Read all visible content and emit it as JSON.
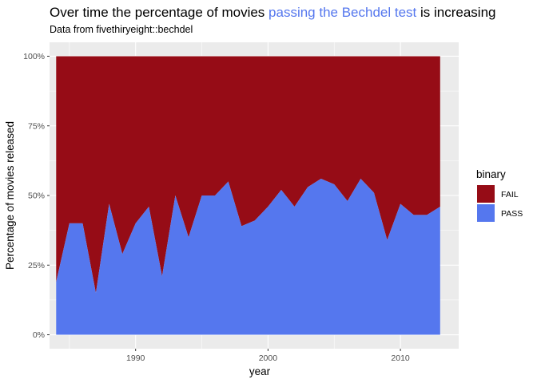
{
  "chart_data": {
    "type": "area",
    "stacked": "fill",
    "title_parts": {
      "before": "Over time the percentage of movies ",
      "highlight": "passing the Bechdel test",
      "after": " is increasing"
    },
    "subtitle": "Data from fivethiryeight::bechdel",
    "xlabel": "year",
    "ylabel": "Percentage of movies released",
    "xlim": [
      1983.5,
      2014.4
    ],
    "ylim": [
      -0.05,
      1.05
    ],
    "x_ticks": [
      1990,
      2000,
      2010
    ],
    "x_tick_labels": [
      "1990",
      "2000",
      "2010"
    ],
    "y_ticks": [
      0,
      0.25,
      0.5,
      0.75,
      1.0
    ],
    "y_tick_labels": [
      "0%",
      "25%",
      "50%",
      "75%",
      "100%"
    ],
    "grid": true,
    "legend_title": "binary",
    "legend_position": "right",
    "series": [
      {
        "name": "FAIL",
        "color": "#960c16"
      },
      {
        "name": "PASS",
        "color": "#5577ee"
      }
    ],
    "x": [
      1984,
      1985,
      1986,
      1987,
      1988,
      1989,
      1990,
      1991,
      1992,
      1993,
      1994,
      1995,
      1996,
      1997,
      1998,
      1999,
      2000,
      2001,
      2002,
      2003,
      2004,
      2005,
      2006,
      2007,
      2008,
      2009,
      2010,
      2011,
      2012,
      2013
    ],
    "pass_share": [
      0.19,
      0.4,
      0.4,
      0.15,
      0.47,
      0.29,
      0.4,
      0.46,
      0.21,
      0.5,
      0.35,
      0.5,
      0.5,
      0.55,
      0.39,
      0.41,
      0.46,
      0.52,
      0.46,
      0.53,
      0.56,
      0.54,
      0.48,
      0.56,
      0.51,
      0.34,
      0.47,
      0.43,
      0.43,
      0.46
    ]
  }
}
